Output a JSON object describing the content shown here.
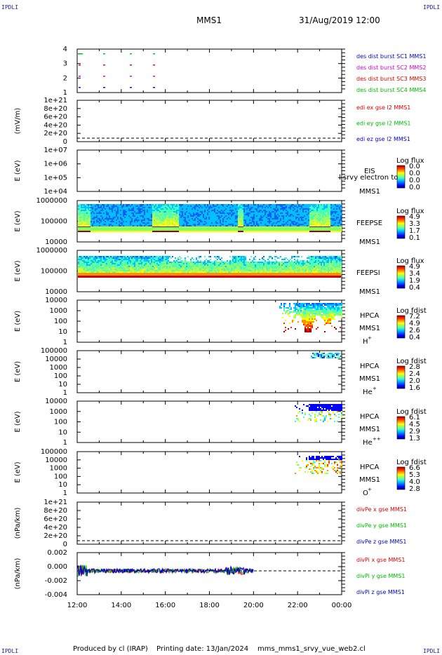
{
  "corners": {
    "tl": "IPDLI",
    "tr": "IPDLI",
    "bl": "IPDLI",
    "br": "IPDLI"
  },
  "header": {
    "title": "MMS1",
    "datetime": "31/Aug/2019 12:00"
  },
  "footer": {
    "producer": "Produced by cl (IRAP)",
    "printing": "Printing date: 13/Jan/2024",
    "file": "mms_mms1_srvy_vue_web2.cl"
  },
  "colors": {
    "red": "#dd0000",
    "green": "#00bb00",
    "blue": "#0000cc",
    "magenta": "#cc00cc"
  },
  "chart_data": {
    "type": "line",
    "x_ticks": [
      "12:00",
      "14:00",
      "16:00",
      "18:00",
      "20:00",
      "22:00",
      "00:00"
    ],
    "panels": [
      {
        "id": "burst",
        "y_ticks": [
          "4",
          "3",
          "2",
          "1"
        ],
        "legend": [
          {
            "text": "des dist burst SC1 MMS1",
            "color": "blue"
          },
          {
            "text": "des dist burst SC2 MMS2",
            "color": "magenta"
          },
          {
            "text": "des dist burst SC3 MMS3",
            "color": "red"
          },
          {
            "text": "des dist burst SC4 MMS4",
            "color": "green"
          }
        ]
      },
      {
        "id": "edi",
        "ylabel": "(mV/m)",
        "y_ticks": [
          "1e+21",
          "8e+20",
          "6e+20",
          "4e+20",
          "2e+20",
          "0"
        ],
        "legend": [
          {
            "text": "edi ex gse l2 MMS1",
            "color": "red"
          },
          {
            "text": "edi ey gse l2 MMS1",
            "color": "green"
          },
          {
            "text": "edi ez gse l2 MMS1",
            "color": "blue"
          }
        ]
      },
      {
        "id": "eis",
        "ylabel": "E (eV)",
        "y_ticks": [
          "1e+07",
          "1e+06",
          "1e+05",
          "1e+04"
        ],
        "side": [
          "EIS",
          "MMS1"
        ],
        "overlay": "l srvy electron to",
        "cb_title": "Log flux",
        "cb_ticks": [
          "0.0",
          "0.0",
          "0.0",
          "0.0"
        ]
      },
      {
        "id": "feepse",
        "ylabel": "E (eV)",
        "y_ticks": [
          "1000000",
          "100000",
          "10000"
        ],
        "side": [
          "FEEPSE",
          "MMS1"
        ],
        "cb_title": "Log flux",
        "cb_ticks": [
          "4.9",
          "3.3",
          "1.7",
          "0.1"
        ]
      },
      {
        "id": "feepsi",
        "ylabel": "E (eV)",
        "y_ticks": [
          "1000000",
          "100000",
          "10000"
        ],
        "side": [
          "FEEPSI",
          "MMS1"
        ],
        "cb_title": "Log flux",
        "cb_ticks": [
          "4.9",
          "3.4",
          "1.9",
          "0.4"
        ]
      },
      {
        "id": "hpca_h",
        "ylabel": "E (eV)",
        "y_ticks": [
          "10000",
          "1000",
          "100",
          "10",
          "1"
        ],
        "side": [
          "HPCA",
          "MMS1",
          "H",
          "+"
        ],
        "cb_title": "Log fdist",
        "cb_ticks": [
          "7.2",
          "4.9",
          "2.6",
          "0.4"
        ]
      },
      {
        "id": "hpca_he",
        "ylabel": "E (eV)",
        "y_ticks": [
          "100000",
          "10000",
          "1000",
          "100",
          "10",
          "1"
        ],
        "side": [
          "HPCA",
          "MMS1",
          "He",
          "+"
        ],
        "cb_title": "Log fdist",
        "cb_ticks": [
          "2.8",
          "2.4",
          "2.0",
          "1.6"
        ]
      },
      {
        "id": "hpca_he2",
        "ylabel": "E (eV)",
        "y_ticks": [
          "10000",
          "1000",
          "100",
          "10",
          "1"
        ],
        "side": [
          "HPCA",
          "MMS1",
          "He",
          "++"
        ],
        "cb_title": "Log fdist",
        "cb_ticks": [
          "6.1",
          "4.5",
          "2.9",
          "1.3"
        ]
      },
      {
        "id": "hpca_o",
        "ylabel": "E (eV)",
        "y_ticks": [
          "100000",
          "10000",
          "1000",
          "100",
          "10",
          "1"
        ],
        "side": [
          "HPCA",
          "MMS1",
          "O",
          "+"
        ],
        "cb_title": "Log fdist",
        "cb_ticks": [
          "6.6",
          "5.3",
          "4.0",
          "2.8"
        ]
      },
      {
        "id": "divpe",
        "ylabel": "(nPa/km)",
        "y_ticks": [
          "1e+21",
          "8e+20",
          "6e+20",
          "4e+20",
          "2e+20",
          "0"
        ],
        "legend": [
          {
            "text": "divPe x gse MMS1",
            "color": "red"
          },
          {
            "text": "divPe y gse MMS1",
            "color": "green"
          },
          {
            "text": "divPe z gse MMS1",
            "color": "blue"
          }
        ]
      },
      {
        "id": "divpi",
        "ylabel": "(nPa/km)",
        "y_ticks": [
          "0.002",
          "0.000",
          "-0.002",
          "-0.004"
        ],
        "legend": [
          {
            "text": "divPi x gse MMS1",
            "color": "red"
          },
          {
            "text": "divPi y gse MMS1",
            "color": "green"
          },
          {
            "text": "divPi z gse MMS1",
            "color": "blue"
          }
        ]
      }
    ]
  }
}
